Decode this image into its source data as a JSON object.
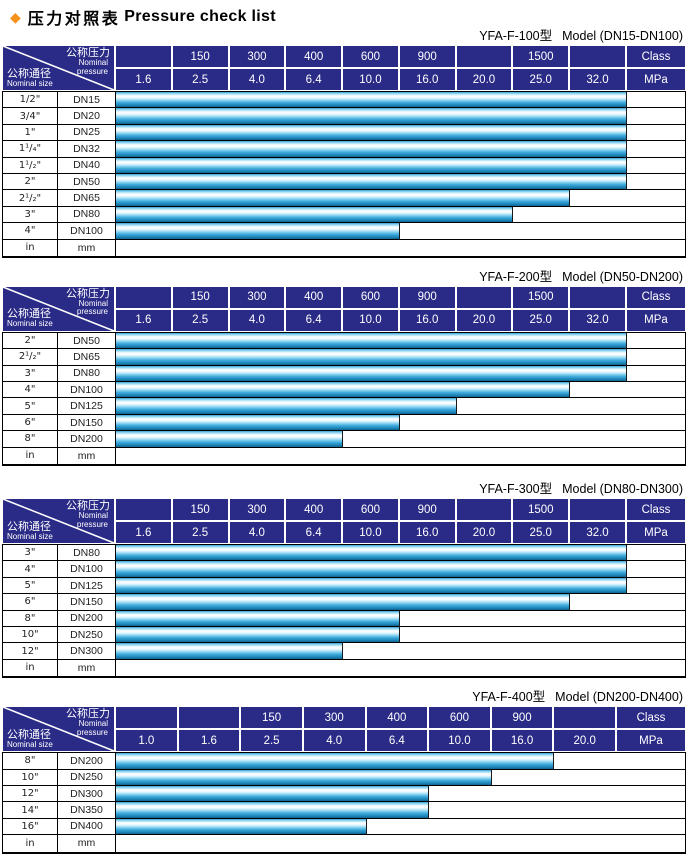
{
  "page": {
    "diamond": "◆",
    "title_zh": "压力对照表",
    "title_en": "Pressure check list"
  },
  "colors": {
    "header_navy": "#2a2a87",
    "bar_cyan": "#29a8dc",
    "diamond_orange": "#f5921e",
    "border_black": "#000000"
  },
  "corner": {
    "pressure_zh": "公称压力",
    "pressure_en1": "Nominal",
    "pressure_en2": "pressure",
    "size_zh": "公称通径",
    "size_en": "Nominal size"
  },
  "tables": [
    {
      "model": "YFA-F-100型",
      "range": "Model (DN15-DN100)",
      "class_cells": [
        "",
        "150",
        "300",
        "400",
        "600",
        "900",
        "",
        "1500",
        "",
        "Class"
      ],
      "mpa_cells": [
        "1.6",
        "2.5",
        "4.0",
        "6.4",
        "10.0",
        "16.0",
        "20.0",
        "25.0",
        "32.0",
        "MPa"
      ],
      "rows": [
        {
          "inch": "1/2\"",
          "dn": "DN15",
          "span": 9,
          "max_mpa": "32.0"
        },
        {
          "inch": "3/4\"",
          "dn": "DN20",
          "span": 9,
          "max_mpa": "32.0"
        },
        {
          "inch": "1\"",
          "dn": "DN25",
          "span": 9,
          "max_mpa": "32.0"
        },
        {
          "inch": "1¹/₄\"",
          "dn": "DN32",
          "span": 9,
          "max_mpa": "32.0"
        },
        {
          "inch": "1¹/₂\"",
          "dn": "DN40",
          "span": 9,
          "max_mpa": "32.0"
        },
        {
          "inch": "2\"",
          "dn": "DN50",
          "span": 9,
          "max_mpa": "32.0"
        },
        {
          "inch": "2¹/₂\"",
          "dn": "DN65",
          "span": 8,
          "max_mpa": "25.0"
        },
        {
          "inch": "3\"",
          "dn": "DN80",
          "span": 7,
          "max_mpa": "20.0"
        },
        {
          "inch": "4\"",
          "dn": "DN100",
          "span": 5,
          "max_mpa": "10.0"
        }
      ],
      "unit_row": {
        "inch": "in",
        "dn": "mm"
      }
    },
    {
      "model": "YFA-F-200型",
      "range": "Model (DN50-DN200)",
      "class_cells": [
        "",
        "150",
        "300",
        "400",
        "600",
        "900",
        "",
        "1500",
        "",
        "Class"
      ],
      "mpa_cells": [
        "1.6",
        "2.5",
        "4.0",
        "6.4",
        "10.0",
        "16.0",
        "20.0",
        "25.0",
        "32.0",
        "MPa"
      ],
      "rows": [
        {
          "inch": "2\"",
          "dn": "DN50",
          "span": 9,
          "max_mpa": "32.0"
        },
        {
          "inch": "2¹/₂\"",
          "dn": "DN65",
          "span": 9,
          "max_mpa": "32.0"
        },
        {
          "inch": "3\"",
          "dn": "DN80",
          "span": 9,
          "max_mpa": "32.0"
        },
        {
          "inch": "4\"",
          "dn": "DN100",
          "span": 8,
          "max_mpa": "25.0"
        },
        {
          "inch": "5\"",
          "dn": "DN125",
          "span": 6,
          "max_mpa": "16.0"
        },
        {
          "inch": "6\"",
          "dn": "DN150",
          "span": 5,
          "max_mpa": "10.0"
        },
        {
          "inch": "8\"",
          "dn": "DN200",
          "span": 4,
          "max_mpa": "6.4"
        }
      ],
      "unit_row": {
        "inch": "in",
        "dn": "mm"
      }
    },
    {
      "model": "YFA-F-300型",
      "range": "Model (DN80-DN300)",
      "class_cells": [
        "",
        "150",
        "300",
        "400",
        "600",
        "900",
        "",
        "1500",
        "",
        "Class"
      ],
      "mpa_cells": [
        "1.6",
        "2.5",
        "4.0",
        "6.4",
        "10.0",
        "16.0",
        "20.0",
        "25.0",
        "32.0",
        "MPa"
      ],
      "rows": [
        {
          "inch": "3\"",
          "dn": "DN80",
          "span": 9,
          "max_mpa": "32.0"
        },
        {
          "inch": "4\"",
          "dn": "DN100",
          "span": 9,
          "max_mpa": "32.0"
        },
        {
          "inch": "5\"",
          "dn": "DN125",
          "span": 9,
          "max_mpa": "32.0"
        },
        {
          "inch": "6\"",
          "dn": "DN150",
          "span": 8,
          "max_mpa": "25.0"
        },
        {
          "inch": "8\"",
          "dn": "DN200",
          "span": 5,
          "max_mpa": "10.0"
        },
        {
          "inch": "10\"",
          "dn": "DN250",
          "span": 5,
          "max_mpa": "10.0"
        },
        {
          "inch": "12\"",
          "dn": "DN300",
          "span": 4,
          "max_mpa": "6.4"
        }
      ],
      "unit_row": {
        "inch": "in",
        "dn": "mm"
      }
    },
    {
      "model": "YFA-F-400型",
      "range": "Model (DN200-DN400)",
      "class_cells": [
        "",
        "",
        "150",
        "300",
        "400",
        "600",
        "900",
        "",
        "Class"
      ],
      "mpa_cells": [
        "1.0",
        "1.6",
        "2.5",
        "4.0",
        "6.4",
        "10.0",
        "16.0",
        "20.0",
        "MPa"
      ],
      "rows": [
        {
          "inch": "8\"",
          "dn": "DN200",
          "span": 7,
          "max_mpa": "16.0"
        },
        {
          "inch": "10\"",
          "dn": "DN250",
          "span": 6,
          "max_mpa": "10.0"
        },
        {
          "inch": "12\"",
          "dn": "DN300",
          "span": 5,
          "max_mpa": "6.4"
        },
        {
          "inch": "14\"",
          "dn": "DN350",
          "span": 5,
          "max_mpa": "6.4"
        },
        {
          "inch": "16\"",
          "dn": "DN400",
          "span": 4,
          "max_mpa": "4.0"
        }
      ],
      "unit_row": {
        "inch": "in",
        "dn": "mm"
      }
    }
  ]
}
